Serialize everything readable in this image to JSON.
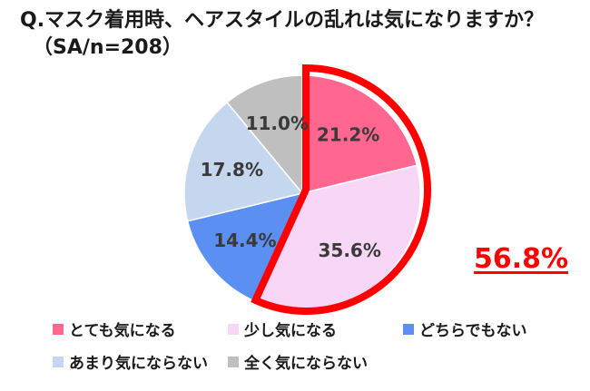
{
  "title": {
    "line1": "Q.マスク着用時、ヘアスタイルの乱れは気になりますか？",
    "line2": "（SA/n=208）"
  },
  "highlight": {
    "value": "56.8%",
    "color": "#ff0000",
    "covers": [
      "とても気になる",
      "少し気になる"
    ]
  },
  "chart_data": {
    "type": "pie",
    "title": "Q.マスク着用時、ヘアスタイルの乱れは気になりますか？",
    "n": 208,
    "start": "12 o'clock",
    "direction": "clockwise",
    "legend_position": "bottom",
    "slices": [
      {
        "label": "とても気になる",
        "value": 21.2,
        "value_label": "21.2%",
        "color": "#ff6690"
      },
      {
        "label": "少し気になる",
        "value": 35.6,
        "value_label": "35.6%",
        "color": "#f7d7f5"
      },
      {
        "label": "どちらでもない",
        "value": 14.4,
        "value_label": "14.4%",
        "color": "#5b8ff2"
      },
      {
        "label": "あまり気にならない",
        "value": 17.8,
        "value_label": "17.8%",
        "color": "#c5d6ef"
      },
      {
        "label": "全く気にならない",
        "value": 11.0,
        "value_label": "11.0%",
        "color": "#bfbfbf"
      }
    ]
  }
}
